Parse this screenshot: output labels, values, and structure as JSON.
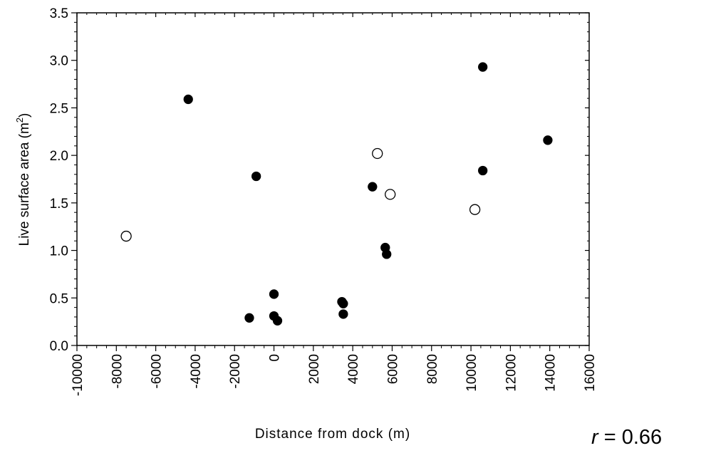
{
  "chart_data": {
    "type": "scatter",
    "title": "",
    "xlabel": "Distance from dock (m)",
    "ylabel": "Live surface area (m",
    "ylabel_superscript": "2",
    "ylabel_suffix": ")",
    "xlim": [
      -10000,
      16000
    ],
    "ylim": [
      0.0,
      3.5
    ],
    "x_ticks": [
      -10000,
      -8000,
      -6000,
      -4000,
      -2000,
      0,
      2000,
      4000,
      6000,
      8000,
      10000,
      12000,
      14000,
      16000
    ],
    "x_tick_labels": [
      "-10000",
      "-8000",
      "-6000",
      "-4000",
      "-2000",
      "0",
      "2000",
      "4000",
      "6000",
      "8000",
      "10000",
      "12000",
      "14000",
      "16000"
    ],
    "y_ticks": [
      0.0,
      0.5,
      1.0,
      1.5,
      2.0,
      2.5,
      3.0,
      3.5
    ],
    "y_tick_labels": [
      "0.0",
      "0.5",
      "1.0",
      "1.5",
      "2.0",
      "2.5",
      "3.0",
      "3.5"
    ],
    "grid": false,
    "series": [
      {
        "marker": "filled-circle",
        "color": "#000000",
        "points": [
          {
            "x": -4350,
            "y": 2.59
          },
          {
            "x": -900,
            "y": 1.78
          },
          {
            "x": -1250,
            "y": 0.29
          },
          {
            "x": 0,
            "y": 0.54
          },
          {
            "x": 0,
            "y": 0.31
          },
          {
            "x": 180,
            "y": 0.26
          },
          {
            "x": 3450,
            "y": 0.46
          },
          {
            "x": 3520,
            "y": 0.44
          },
          {
            "x": 3520,
            "y": 0.33
          },
          {
            "x": 5000,
            "y": 1.67
          },
          {
            "x": 5650,
            "y": 1.03
          },
          {
            "x": 5720,
            "y": 0.96
          },
          {
            "x": 10600,
            "y": 2.93
          },
          {
            "x": 10600,
            "y": 1.84
          },
          {
            "x": 13900,
            "y": 2.16
          }
        ]
      },
      {
        "marker": "open-circle",
        "color": "#000000",
        "points": [
          {
            "x": -7500,
            "y": 1.15
          },
          {
            "x": 5250,
            "y": 2.02
          },
          {
            "x": 5900,
            "y": 1.59
          },
          {
            "x": 10200,
            "y": 1.43
          }
        ]
      }
    ],
    "annotation": {
      "italic_part": "r",
      "rest": " = 0.66"
    }
  }
}
